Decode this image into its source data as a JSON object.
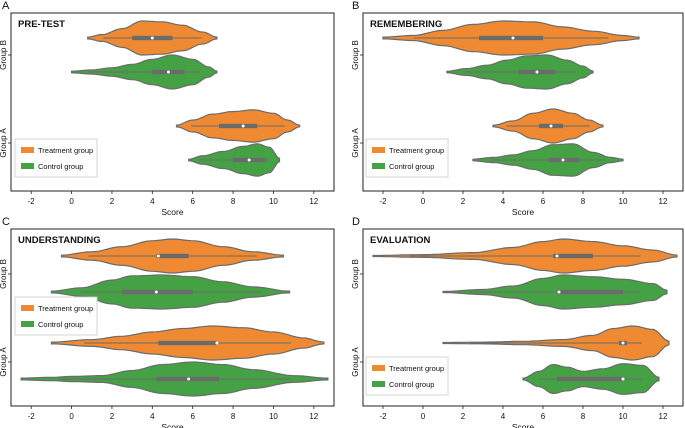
{
  "colors": {
    "treatment": "#ef8a32",
    "control": "#44a244",
    "violin_edge": "#6b6b6b",
    "box": "#6b6b6b",
    "median": "#ffffff",
    "frame": "#222222",
    "text": "#111111"
  },
  "chart_data": [
    {
      "type": "violin",
      "panel_letter": "A",
      "title": "PRE-TEST",
      "xlabel": "Score",
      "xlim": [
        -3,
        13
      ],
      "xticks": [
        -2,
        0,
        2,
        4,
        6,
        8,
        10,
        12
      ],
      "categories": [
        "Group B",
        "Group A"
      ],
      "legend": {
        "position": "bottom-left",
        "entries": [
          "Treatment group",
          "Control group"
        ]
      },
      "series": [
        {
          "name": "Treatment group",
          "color_key": "treatment",
          "groups": [
            {
              "group": "Group B",
              "min": 0.8,
              "q1": 3.0,
              "median": 4.0,
              "q3": 5.0,
              "max": 7.2,
              "density": [
                [
                  0.8,
                  0.05
                ],
                [
                  1.5,
                  0.2
                ],
                [
                  2.5,
                  0.55
                ],
                [
                  3.5,
                  1.0
                ],
                [
                  4.5,
                  0.95
                ],
                [
                  5.5,
                  0.75
                ],
                [
                  6.5,
                  0.35
                ],
                [
                  7.2,
                  0.05
                ]
              ]
            },
            {
              "group": "Group A",
              "min": 5.2,
              "q1": 7.3,
              "median": 8.5,
              "q3": 9.2,
              "max": 11.3,
              "density": [
                [
                  5.2,
                  0.05
                ],
                [
                  6.0,
                  0.35
                ],
                [
                  7.0,
                  0.7
                ],
                [
                  8.0,
                  0.85
                ],
                [
                  9.0,
                  0.95
                ],
                [
                  10.0,
                  0.75
                ],
                [
                  10.7,
                  0.35
                ],
                [
                  11.3,
                  0.05
                ]
              ]
            }
          ]
        },
        {
          "name": "Control group",
          "color_key": "control",
          "groups": [
            {
              "group": "Group B",
              "min": 0.0,
              "q1": 4.0,
              "median": 4.8,
              "q3": 5.6,
              "max": 7.2,
              "density": [
                [
                  0.0,
                  0.05
                ],
                [
                  1.0,
                  0.12
                ],
                [
                  2.0,
                  0.25
                ],
                [
                  3.0,
                  0.45
                ],
                [
                  4.0,
                  0.75
                ],
                [
                  5.0,
                  1.0
                ],
                [
                  6.0,
                  0.75
                ],
                [
                  6.8,
                  0.3
                ],
                [
                  7.2,
                  0.05
                ]
              ]
            },
            {
              "group": "Group A",
              "min": 5.8,
              "q1": 8.0,
              "median": 8.8,
              "q3": 9.6,
              "max": 10.3,
              "density": [
                [
                  5.8,
                  0.05
                ],
                [
                  6.5,
                  0.25
                ],
                [
                  7.5,
                  0.5
                ],
                [
                  8.5,
                  0.8
                ],
                [
                  9.2,
                  0.95
                ],
                [
                  9.8,
                  0.75
                ],
                [
                  10.3,
                  0.1
                ]
              ]
            }
          ]
        }
      ]
    },
    {
      "type": "violin",
      "panel_letter": "B",
      "title": "REMEMBERING",
      "xlabel": "Score",
      "xlim": [
        -3,
        13
      ],
      "xticks": [
        -2,
        0,
        2,
        4,
        6,
        8,
        10,
        12
      ],
      "categories": [
        "Group B",
        "Group A"
      ],
      "legend": {
        "position": "bottom-left",
        "entries": [
          "Treatment group",
          "Control group"
        ]
      },
      "series": [
        {
          "name": "Treatment group",
          "color_key": "treatment",
          "groups": [
            {
              "group": "Group B",
              "min": -2.0,
              "q1": 2.8,
              "median": 4.5,
              "q3": 6.0,
              "max": 10.8,
              "density": [
                [
                  -2.0,
                  0.05
                ],
                [
                  -0.5,
                  0.15
                ],
                [
                  1.0,
                  0.45
                ],
                [
                  2.5,
                  0.8
                ],
                [
                  4.0,
                  1.0
                ],
                [
                  5.5,
                  0.95
                ],
                [
                  7.0,
                  0.65
                ],
                [
                  8.5,
                  0.4
                ],
                [
                  10.0,
                  0.15
                ],
                [
                  10.8,
                  0.05
                ]
              ]
            },
            {
              "group": "Group A",
              "min": 3.5,
              "q1": 5.8,
              "median": 6.4,
              "q3": 7.0,
              "max": 9.0,
              "density": [
                [
                  3.5,
                  0.05
                ],
                [
                  4.5,
                  0.3
                ],
                [
                  5.5,
                  0.75
                ],
                [
                  6.5,
                  1.0
                ],
                [
                  7.5,
                  0.75
                ],
                [
                  8.3,
                  0.35
                ],
                [
                  9.0,
                  0.05
                ]
              ]
            }
          ]
        },
        {
          "name": "Control group",
          "color_key": "control",
          "groups": [
            {
              "group": "Group B",
              "min": 1.2,
              "q1": 4.8,
              "median": 5.7,
              "q3": 6.6,
              "max": 8.5,
              "density": [
                [
                  1.2,
                  0.05
                ],
                [
                  2.2,
                  0.2
                ],
                [
                  3.2,
                  0.4
                ],
                [
                  4.2,
                  0.7
                ],
                [
                  5.2,
                  0.95
                ],
                [
                  6.2,
                  1.0
                ],
                [
                  7.2,
                  0.7
                ],
                [
                  8.0,
                  0.35
                ],
                [
                  8.5,
                  0.05
                ]
              ]
            },
            {
              "group": "Group A",
              "min": 2.5,
              "q1": 6.3,
              "median": 7.0,
              "q3": 7.8,
              "max": 10.0,
              "density": [
                [
                  2.5,
                  0.05
                ],
                [
                  3.5,
                  0.15
                ],
                [
                  4.5,
                  0.3
                ],
                [
                  5.5,
                  0.55
                ],
                [
                  6.5,
                  0.9
                ],
                [
                  7.5,
                  0.95
                ],
                [
                  8.5,
                  0.45
                ],
                [
                  9.4,
                  0.15
                ],
                [
                  10.0,
                  0.05
                ]
              ]
            }
          ]
        }
      ]
    },
    {
      "type": "violin",
      "panel_letter": "C",
      "title": "UNDERSTANDING",
      "xlabel": "Score",
      "xlim": [
        -3,
        13
      ],
      "xticks": [
        -2,
        0,
        2,
        4,
        6,
        8,
        10,
        12
      ],
      "categories": [
        "Group B",
        "Group A"
      ],
      "legend": {
        "position": "middle-left",
        "entries": [
          "Treatment group",
          "Control group"
        ]
      },
      "series": [
        {
          "name": "Treatment group",
          "color_key": "treatment",
          "groups": [
            {
              "group": "Group B",
              "min": -0.5,
              "q1": 4.2,
              "median": 4.3,
              "q3": 5.8,
              "max": 10.5,
              "density": [
                [
                  -0.5,
                  0.05
                ],
                [
                  1.0,
                  0.25
                ],
                [
                  2.5,
                  0.55
                ],
                [
                  4.0,
                  0.9
                ],
                [
                  5.0,
                  1.0
                ],
                [
                  6.0,
                  0.9
                ],
                [
                  7.5,
                  0.55
                ],
                [
                  9.0,
                  0.25
                ],
                [
                  10.5,
                  0.05
                ]
              ]
            },
            {
              "group": "Group A",
              "min": -1.0,
              "q1": 4.3,
              "median": 7.2,
              "q3": 7.2,
              "max": 12.5,
              "density": [
                [
                  -1.0,
                  0.05
                ],
                [
                  1.0,
                  0.2
                ],
                [
                  2.5,
                  0.4
                ],
                [
                  4.0,
                  0.65
                ],
                [
                  5.5,
                  0.85
                ],
                [
                  7.0,
                  1.0
                ],
                [
                  8.5,
                  0.9
                ],
                [
                  10.0,
                  0.65
                ],
                [
                  11.5,
                  0.3
                ],
                [
                  12.5,
                  0.05
                ]
              ]
            }
          ]
        },
        {
          "name": "Control group",
          "color_key": "control",
          "groups": [
            {
              "group": "Group B",
              "min": -1.0,
              "q1": 2.5,
              "median": 4.2,
              "q3": 6.0,
              "max": 10.8,
              "density": [
                [
                  -1.0,
                  0.05
                ],
                [
                  0.5,
                  0.25
                ],
                [
                  2.0,
                  0.7
                ],
                [
                  3.0,
                  0.95
                ],
                [
                  4.5,
                  1.0
                ],
                [
                  6.0,
                  0.9
                ],
                [
                  7.5,
                  0.6
                ],
                [
                  9.0,
                  0.3
                ],
                [
                  10.8,
                  0.05
                ]
              ]
            },
            {
              "group": "Group A",
              "min": -2.5,
              "q1": 4.2,
              "median": 5.8,
              "q3": 7.3,
              "max": 12.7,
              "density": [
                [
                  -2.5,
                  0.05
                ],
                [
                  -1.0,
                  0.1
                ],
                [
                  0.0,
                  0.15
                ],
                [
                  1.5,
                  0.2
                ],
                [
                  3.0,
                  0.5
                ],
                [
                  4.5,
                  0.85
                ],
                [
                  6.0,
                  1.0
                ],
                [
                  7.5,
                  0.85
                ],
                [
                  9.0,
                  0.55
                ],
                [
                  11.0,
                  0.2
                ],
                [
                  12.7,
                  0.05
                ]
              ]
            }
          ]
        }
      ]
    },
    {
      "type": "violin",
      "panel_letter": "D",
      "title": "EVALUATION",
      "xlabel": "Score",
      "xlim": [
        -3,
        13
      ],
      "xticks": [
        -2,
        0,
        2,
        4,
        6,
        8,
        10,
        12
      ],
      "categories": [
        "Group B",
        "Group A"
      ],
      "legend": {
        "position": "bottom-left",
        "entries": [
          "Treatment group",
          "Control group"
        ]
      },
      "series": [
        {
          "name": "Treatment group",
          "color_key": "treatment",
          "groups": [
            {
              "group": "Group B",
              "min": -2.5,
              "q1": 6.5,
              "median": 6.7,
              "q3": 8.5,
              "max": 12.7,
              "density": [
                [
                  -2.5,
                  0.03
                ],
                [
                  0.0,
                  0.08
                ],
                [
                  2.5,
                  0.2
                ],
                [
                  4.5,
                  0.5
                ],
                [
                  6.0,
                  0.85
                ],
                [
                  7.0,
                  1.0
                ],
                [
                  8.5,
                  0.85
                ],
                [
                  10.0,
                  0.6
                ],
                [
                  11.5,
                  0.35
                ],
                [
                  12.7,
                  0.05
                ]
              ]
            },
            {
              "group": "Group A",
              "min": 1.0,
              "q1": 9.8,
              "median": 10.0,
              "q3": 10.2,
              "max": 12.3,
              "density": [
                [
                  1.0,
                  0.03
                ],
                [
                  3.0,
                  0.05
                ],
                [
                  5.0,
                  0.1
                ],
                [
                  7.0,
                  0.2
                ],
                [
                  8.5,
                  0.45
                ],
                [
                  9.5,
                  0.85
                ],
                [
                  10.5,
                  1.0
                ],
                [
                  11.5,
                  0.8
                ],
                [
                  12.3,
                  0.1
                ]
              ]
            }
          ]
        },
        {
          "name": "Control group",
          "color_key": "control",
          "groups": [
            {
              "group": "Group B",
              "min": 1.0,
              "q1": 6.7,
              "median": 6.8,
              "q3": 10.0,
              "max": 12.2,
              "density": [
                [
                  1.0,
                  0.03
                ],
                [
                  3.0,
                  0.15
                ],
                [
                  4.5,
                  0.35
                ],
                [
                  6.0,
                  0.8
                ],
                [
                  7.0,
                  1.0
                ],
                [
                  8.5,
                  0.9
                ],
                [
                  10.0,
                  0.75
                ],
                [
                  11.5,
                  0.5
                ],
                [
                  12.2,
                  0.1
                ]
              ]
            },
            {
              "group": "Group A",
              "min": 5.0,
              "q1": 6.7,
              "median": 10.0,
              "q3": 10.0,
              "max": 11.8,
              "density": [
                [
                  5.0,
                  0.05
                ],
                [
                  5.8,
                  0.45
                ],
                [
                  6.5,
                  0.85
                ],
                [
                  7.2,
                  0.7
                ],
                [
                  8.0,
                  0.45
                ],
                [
                  9.0,
                  0.6
                ],
                [
                  10.0,
                  0.9
                ],
                [
                  11.0,
                  0.8
                ],
                [
                  11.8,
                  0.1
                ]
              ]
            }
          ]
        }
      ]
    }
  ]
}
